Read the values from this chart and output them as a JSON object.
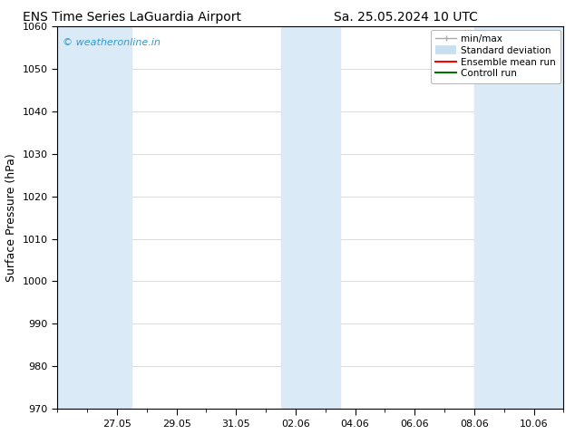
{
  "title_left": "ENS Time Series LaGuardia Airport",
  "title_right": "Sa. 25.05.2024 10 UTC",
  "ylabel": "Surface Pressure (hPa)",
  "ylim": [
    970,
    1060
  ],
  "yticks": [
    970,
    980,
    990,
    1000,
    1010,
    1020,
    1030,
    1040,
    1050,
    1060
  ],
  "xtick_labels": [
    "27.05",
    "29.05",
    "31.05",
    "02.06",
    "04.06",
    "06.06",
    "08.06",
    "10.06"
  ],
  "xtick_positions": [
    2,
    4,
    6,
    8,
    10,
    12,
    14,
    16
  ],
  "xlim": [
    0,
    17
  ],
  "shaded_ranges": [
    [
      0,
      2.5
    ],
    [
      7.5,
      9.5
    ],
    [
      14.0,
      17.0
    ]
  ],
  "shaded_color": "#daeaf7",
  "watermark_text": "© weatheronline.in",
  "watermark_color": "#3399cc",
  "legend_items": [
    {
      "label": "min/max",
      "color": "#aaaaaa",
      "lw": 1.0,
      "style": "minmax"
    },
    {
      "label": "Standard deviation",
      "color": "#c8dff0",
      "lw": 7,
      "style": "std"
    },
    {
      "label": "Ensemble mean run",
      "color": "#ff0000",
      "lw": 1.5,
      "style": "line"
    },
    {
      "label": "Controll run",
      "color": "#007700",
      "lw": 1.5,
      "style": "line"
    }
  ],
  "bg_color": "#ffffff",
  "grid_color": "#cccccc",
  "title_fontsize": 10,
  "tick_fontsize": 8,
  "label_fontsize": 9,
  "legend_fontsize": 7.5
}
